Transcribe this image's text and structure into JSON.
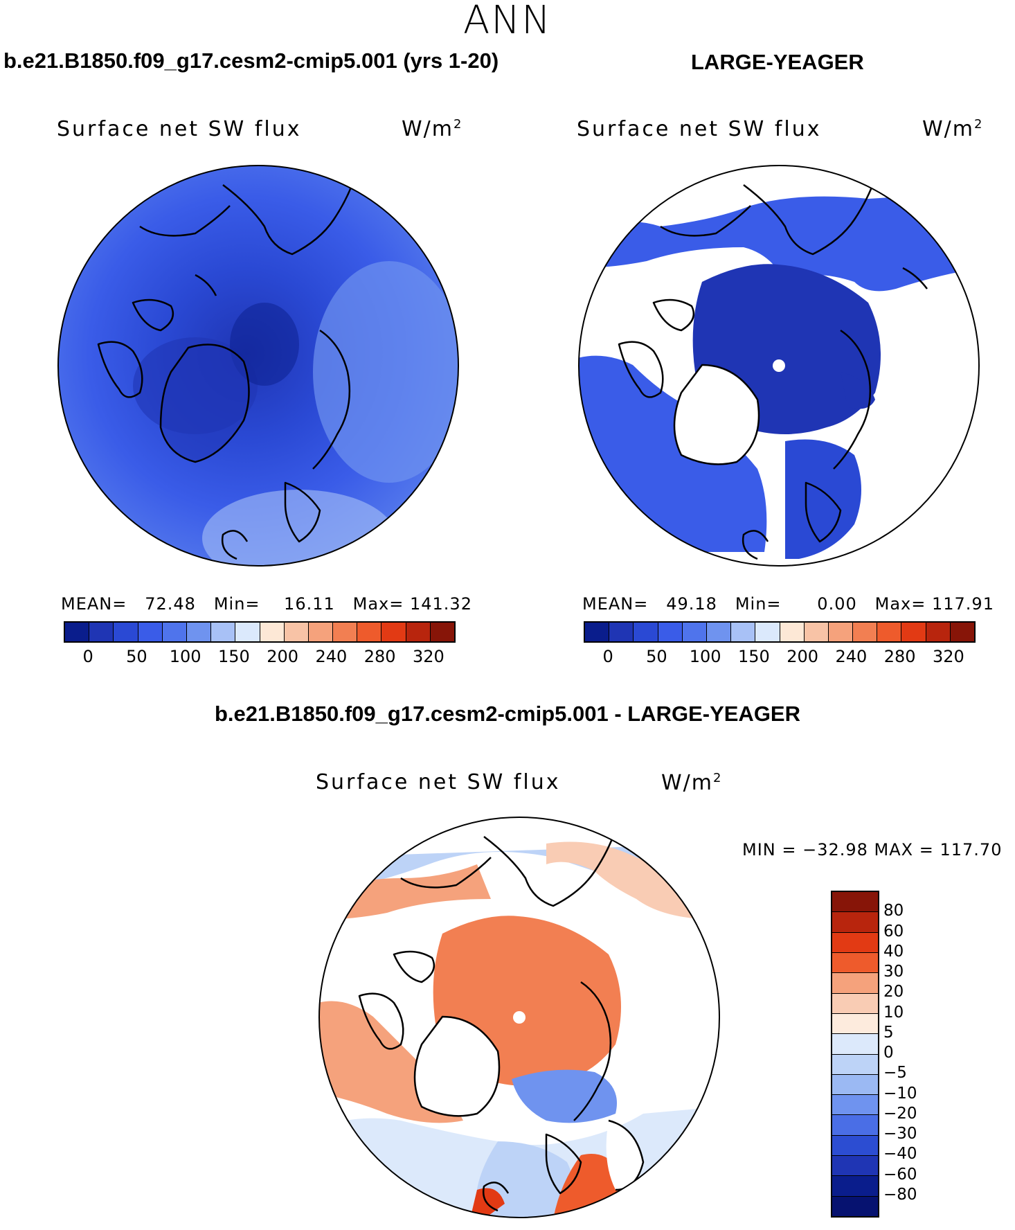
{
  "page": {
    "title": "ANN"
  },
  "panels": [
    {
      "case_title": "b.e21.B1850.f09_g17.cesm2-cmip5.001 (yrs 1-20)",
      "variable": "Surface net SW flux",
      "units": "W/m",
      "units_exp": "2",
      "stats_text": "MEAN=   72.48   Min=    16.11   Max= 141.32",
      "mean": 72.48,
      "min": 16.11,
      "max": 141.32
    },
    {
      "case_title": "LARGE-YEAGER",
      "variable": "Surface net SW flux",
      "units": "W/m",
      "units_exp": "2",
      "stats_text": "MEAN=   49.18   Min=      0.00   Max= 117.91",
      "mean": 49.18,
      "min": 0.0,
      "max": 117.91
    }
  ],
  "diff_panel": {
    "case_title": "b.e21.B1850.f09_g17.cesm2-cmip5.001 - LARGE-YEAGER",
    "variable": "Surface net SW flux",
    "units": "W/m",
    "units_exp": "2",
    "stats_text": "MIN = −32.98 MAX = 117.70",
    "min": -32.98,
    "max": 117.7
  },
  "colorbar_abs": {
    "colors": [
      "#0a1d8c",
      "#1f35b4",
      "#2a49d4",
      "#3a5ce8",
      "#4f74ec",
      "#6f93ef",
      "#a8c1f6",
      "#dbe9fc",
      "#fde8d6",
      "#f8c3a6",
      "#f5a27c",
      "#f27f52",
      "#ee5b2c",
      "#e23a14",
      "#b8250d",
      "#871508"
    ],
    "tick_labels": [
      "0",
      "50",
      "100",
      "150",
      "200",
      "240",
      "280",
      "320"
    ]
  },
  "colorbar_diff": {
    "colors": [
      "#871508",
      "#b8250d",
      "#e23a14",
      "#ee5b2c",
      "#f5a27c",
      "#f9ccb4",
      "#fdebdd",
      "#dce9fb",
      "#bdd3f7",
      "#9bb9f3",
      "#6f93ef",
      "#4a6ee6",
      "#2c4dd2",
      "#1f35b4",
      "#0a1d8c"
    ],
    "tick_labels": [
      "80",
      "60",
      "40",
      "30",
      "20",
      "10",
      "5",
      "0",
      "−5",
      "−10",
      "−20",
      "−30",
      "−40",
      "−60",
      "−80"
    ]
  }
}
